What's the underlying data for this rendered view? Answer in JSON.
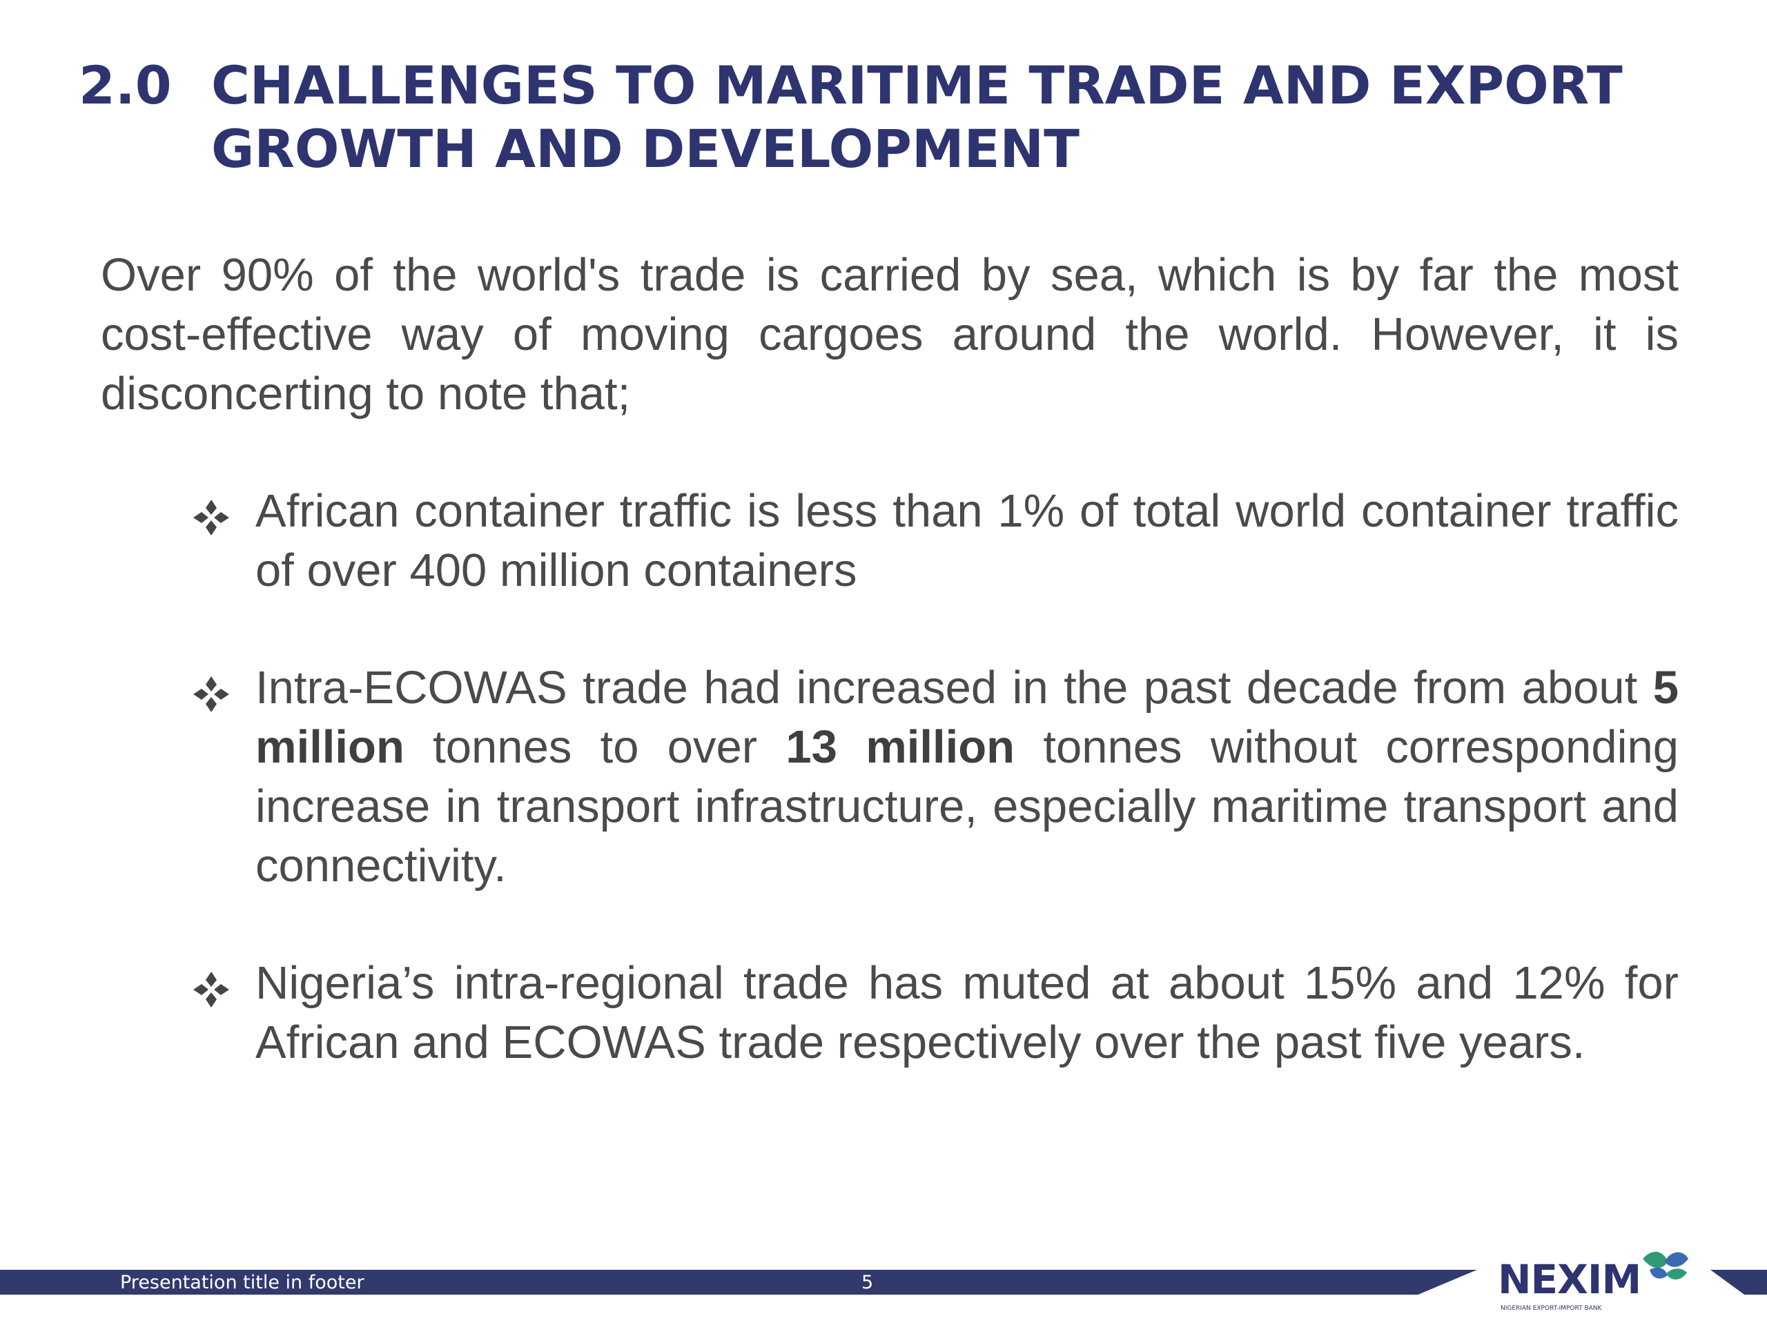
{
  "slide": {
    "number_label": "2.0",
    "title": "CHALLENGES TO MARITIME TRADE AND EXPORT GROWTH AND DEVELOPMENT",
    "intro": "Over 90% of the world's trade is carried by sea, which is by far the most cost-effective way of moving cargoes around the world. However, it is disconcerting  to note that;",
    "bullets": [
      {
        "text": "African container traffic is less than 1% of total world container traffic of over 400 million containers"
      },
      {
        "text_1": "Intra-ECOWAS trade had increased in the past decade from about ",
        "bold_1": "5 million",
        "text_2": " tonnes to over ",
        "bold_2": "13 million",
        "text_3": " tonnes without corresponding increase in transport infrastructure, especially maritime transport and connectivity."
      },
      {
        "text": "Nigeria’s intra-regional trade has muted at about 15% and 12% for African and ECOWAS trade respectively over the past five years."
      }
    ],
    "bullet_icon": "four-diamond-bullet-icon"
  },
  "footer": {
    "title": "Presentation title in footer",
    "page_number": "5"
  },
  "logo": {
    "name": "NEXIM",
    "tagline": "NIGERIAN EXPORT-IMPORT BANK",
    "icon": "nexim-ribbon-logo-icon"
  },
  "colors": {
    "title": "#2e3470",
    "body_text": "#4a4a4a",
    "footer_band": "#313a6d",
    "logo_green": "#2f9a78",
    "logo_blue": "#3b69b3"
  }
}
